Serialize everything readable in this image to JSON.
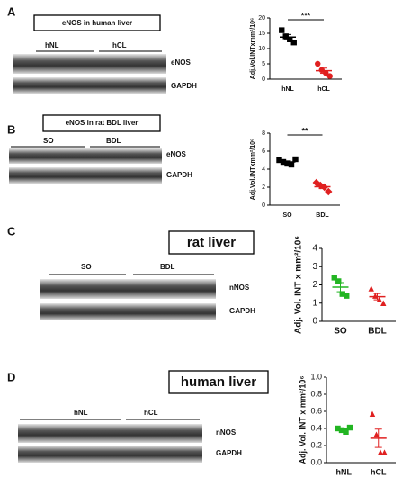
{
  "panels": [
    {
      "letter": "A",
      "title": "eNOS in human liver",
      "lanes": [
        "hNL",
        "hCL"
      ],
      "bands": [
        "eNOS",
        "GAPDH"
      ]
    },
    {
      "letter": "B",
      "title": "eNOS in rat BDL liver",
      "lanes": [
        "SO",
        "BDL"
      ],
      "bands": [
        "eNOS",
        "GAPDH"
      ]
    },
    {
      "letter": "C",
      "title": "rat liver",
      "lanes": [
        "SO",
        "BDL"
      ],
      "bands": [
        "nNOS",
        "GAPDH"
      ]
    },
    {
      "letter": "D",
      "title": "human liver",
      "lanes": [
        "hNL",
        "hCL"
      ],
      "bands": [
        "nNOS",
        "GAPDH"
      ]
    }
  ],
  "chart_data": [
    {
      "type": "scatter",
      "y_label": "Adj.Vol.INTxmm²/10⁶",
      "categories": [
        "hNL",
        "hCL"
      ],
      "values": [
        [
          16,
          14,
          13,
          12
        ],
        [
          5,
          3,
          2,
          1
        ]
      ],
      "colors": [
        "#000000",
        "#e02020"
      ],
      "markers": [
        "square",
        "circle"
      ],
      "annotation": "***",
      "ylim": [
        0,
        20
      ],
      "yticks": [
        0,
        5,
        10,
        15,
        20
      ]
    },
    {
      "type": "scatter",
      "y_label": "Adj.Vol.INTxmm²/10⁶",
      "categories": [
        "SO",
        "BDL"
      ],
      "values": [
        [
          5,
          4.8,
          4.6,
          4.5,
          5.1
        ],
        [
          2.5,
          2.2,
          2.0,
          1.5
        ]
      ],
      "colors": [
        "#000000",
        "#e02020"
      ],
      "markers": [
        "square",
        "diamond"
      ],
      "annotation": "**",
      "ylim": [
        0,
        8
      ],
      "yticks": [
        0,
        2,
        4,
        6,
        8
      ]
    },
    {
      "type": "scatter",
      "y_label": "Adj. Vol. INT x mm²/10⁶",
      "categories": [
        "SO",
        "BDL"
      ],
      "values": [
        [
          2.4,
          2.2,
          1.5,
          1.4
        ],
        [
          1.8,
          1.4,
          1.2,
          1.0
        ]
      ],
      "colors": [
        "#22b522",
        "#e02020"
      ],
      "markers": [
        "square",
        "triangle"
      ],
      "ylim": [
        0,
        4
      ],
      "yticks": [
        0,
        1,
        2,
        3,
        4
      ]
    },
    {
      "type": "scatter",
      "y_label": "Adj. Vol. INT x mm²/10⁶",
      "categories": [
        "hNL",
        "hCL"
      ],
      "values": [
        [
          0.4,
          0.38,
          0.36,
          0.41
        ],
        [
          0.57,
          0.33,
          0.12,
          0.12
        ]
      ],
      "colors": [
        "#22b522",
        "#e02020"
      ],
      "markers": [
        "square",
        "triangle"
      ],
      "ylim": [
        0,
        1.0
      ],
      "yticks": [
        {
          "value": 0,
          "label": "0.0"
        },
        0.2,
        0.4,
        0.6,
        0.8,
        {
          "value": 1.0,
          "label": "1.0"
        }
      ]
    }
  ]
}
